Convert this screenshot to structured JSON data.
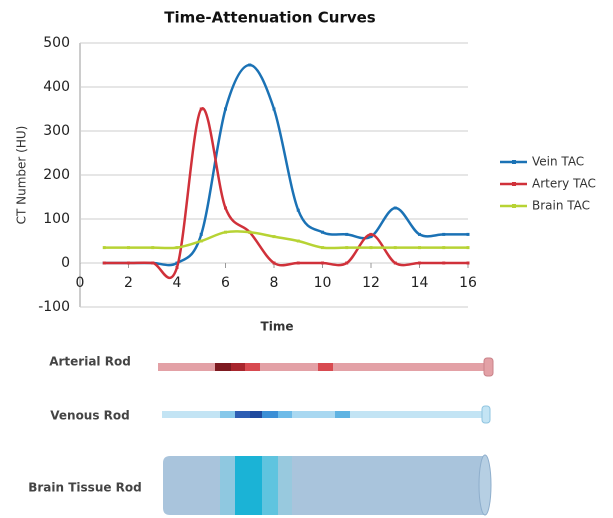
{
  "chart_data": {
    "type": "line",
    "title": "Time-Attenuation Curves",
    "x_label": "Time",
    "y_label": "CT Number (HU)",
    "x": [
      1,
      2,
      3,
      4,
      5,
      6,
      7,
      8,
      9,
      10,
      11,
      12,
      13,
      14,
      15,
      16
    ],
    "series": [
      {
        "name": "Vein TAC",
        "color": "#1b72b5",
        "values": [
          0,
          0,
          0,
          0,
          65,
          350,
          450,
          350,
          120,
          70,
          65,
          60,
          125,
          65,
          65,
          65
        ]
      },
      {
        "name": "Artery TAC",
        "color": "#d0313a",
        "values": [
          0,
          0,
          0,
          -10,
          350,
          125,
          70,
          0,
          0,
          0,
          0,
          65,
          0,
          0,
          0,
          0
        ]
      },
      {
        "name": "Brain TAC",
        "color": "#b7d334",
        "values": [
          35,
          35,
          35,
          35,
          50,
          70,
          70,
          60,
          50,
          35,
          35,
          35,
          35,
          35,
          35,
          35
        ]
      }
    ],
    "xlim": [
      0,
      16
    ],
    "xticks": [
      0,
      2,
      4,
      6,
      8,
      10,
      12,
      14,
      16
    ],
    "ylim": [
      -100,
      500
    ],
    "yticks": [
      -100,
      0,
      100,
      200,
      300,
      400,
      500
    ],
    "grid": true,
    "legend": "right"
  },
  "rods": {
    "arterial": "Arterial Rod",
    "venous": "Venous Rod",
    "brain": "Brain Tissue  Rod"
  }
}
